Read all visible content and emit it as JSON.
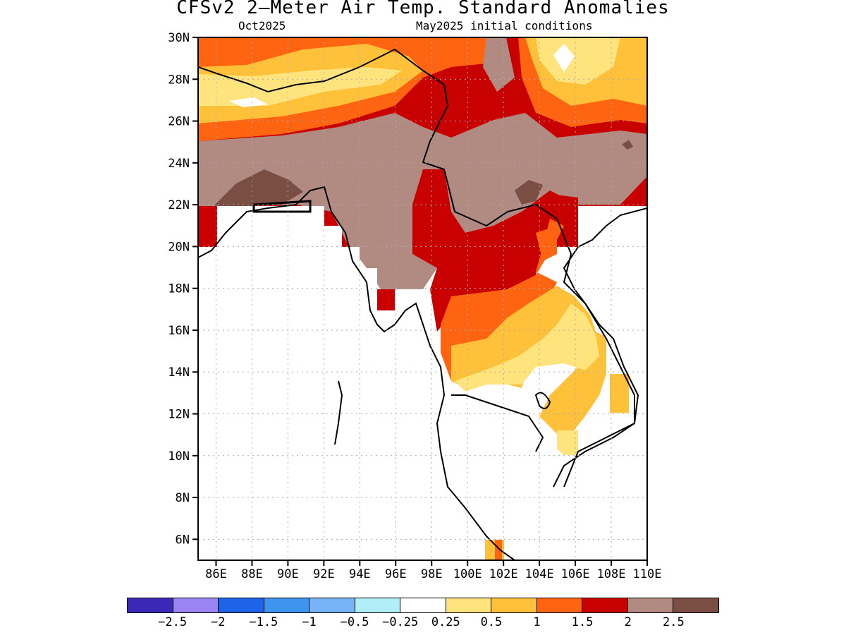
{
  "title": "CFSv2 2–Meter Air Temp. Standard Anomalies",
  "subtitle_left": "Oct2025",
  "subtitle_right": "May2025 initial conditions",
  "y_ticks": [
    "30N",
    "28N",
    "26N",
    "24N",
    "22N",
    "20N",
    "18N",
    "16N",
    "14N",
    "12N",
    "10N",
    "8N",
    "6N"
  ],
  "x_ticks": [
    "86E",
    "88E",
    "90E",
    "92E",
    "94E",
    "96E",
    "98E",
    "100E",
    "102E",
    "104E",
    "106E",
    "108E",
    "110E"
  ],
  "colorbar": {
    "colors": [
      "#3b27b8",
      "#9b85f5",
      "#1d64e8",
      "#3d95f0",
      "#76b4f7",
      "#b2eef7",
      "#ffffff",
      "#ffe47d",
      "#ffc03a",
      "#ff6410",
      "#c80000",
      "#b18a82",
      "#7a4e43"
    ],
    "labels": [
      "−2.5",
      "−2",
      "−1.5",
      "−1",
      "−0.5",
      "−0.25",
      "0.25",
      "0.5",
      "1",
      "1.5",
      "2",
      "2.5"
    ]
  },
  "map_data": {
    "lon_range": [
      85,
      110
    ],
    "lat_range": [
      5,
      30
    ],
    "variable": "2-meter air temperature standard anomaly"
  }
}
